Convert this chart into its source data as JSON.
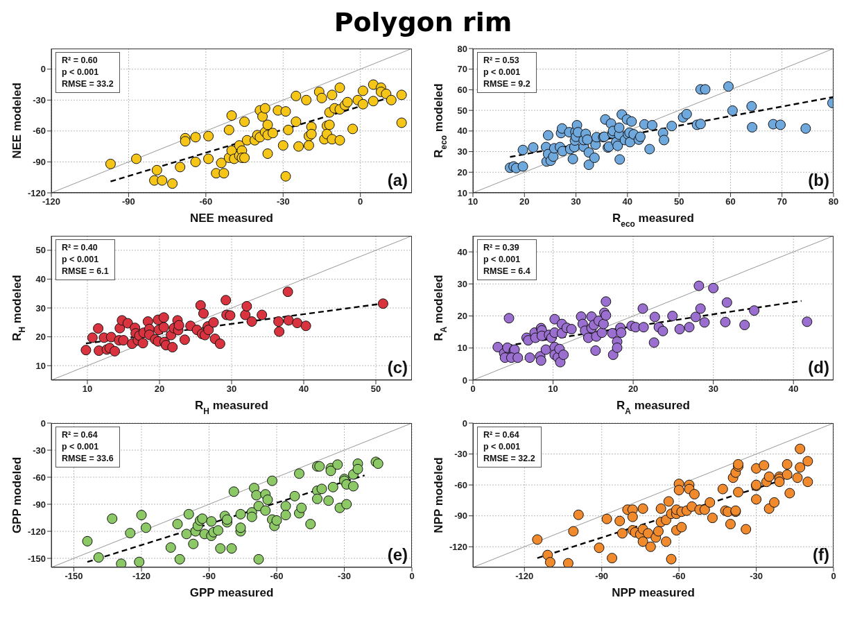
{
  "chart_data": [
    {
      "type": "scatter",
      "title": "Polygon rim",
      "xlabel": "NEE measured",
      "ylabel": "NEE modeled",
      "xlim": [
        -120,
        20
      ],
      "ylim": [
        -120,
        20
      ],
      "xticks": [
        -120,
        -90,
        -60,
        -30,
        0
      ],
      "yticks": [
        -120,
        -90,
        -60,
        -30,
        0
      ],
      "grid": true,
      "annotations": [
        "R² = 0.60",
        "p < 0.001",
        "RMSE = 33.2",
        "(a)"
      ],
      "series": [
        {
          "type": "line",
          "color": "#8c8c8c",
          "line_style": "solid",
          "x": [
            -120,
            20
          ],
          "values": [
            -120,
            20
          ]
        },
        {
          "type": "line",
          "color": "#000000",
          "line_style": "dashed",
          "x": [
            -97,
            12
          ],
          "values": [
            -109,
            -27
          ]
        },
        {
          "marker": "circle",
          "color": "#f5c518",
          "x": [
            -97,
            -87,
            -79,
            -80,
            -77,
            -73,
            -70,
            -68,
            -68,
            -64,
            -64,
            -59,
            -59,
            -56,
            -54,
            -53,
            -51,
            -51,
            -50,
            -50,
            -49,
            -47,
            -47,
            -46,
            -45,
            -46,
            -45,
            -44,
            -41,
            -40,
            -39,
            -39,
            -38,
            -37,
            -37,
            -36,
            -36,
            -36,
            -34,
            -32,
            -30,
            -29,
            -29,
            -28,
            -25,
            -25,
            -24,
            -21,
            -20,
            -20,
            -19,
            -19,
            -16,
            -15,
            -14,
            -13,
            -13,
            -12,
            -12,
            -11,
            -11,
            -10,
            -8,
            -8,
            -8,
            -6,
            -5,
            -3,
            -1,
            1,
            1,
            5,
            5,
            8,
            8,
            10,
            12,
            16,
            16
          ],
          "values": [
            -92,
            -87,
            -98,
            -108,
            -108,
            -111,
            -95,
            -67,
            -70,
            -90,
            -66,
            -65,
            -87,
            -101,
            -91,
            -101,
            -59,
            -86,
            -45,
            -79,
            -87,
            -74,
            -84,
            -79,
            -51,
            -86,
            -86,
            -69,
            -69,
            -64,
            -66,
            -40,
            -46,
            -38,
            -61,
            -64,
            -82,
            -54,
            -62,
            -40,
            -74,
            -41,
            -104,
            -59,
            -26,
            -51,
            -75,
            -30,
            -65,
            -74,
            -56,
            -63,
            -22,
            -28,
            -68,
            -55,
            -63,
            -42,
            -54,
            -68,
            -25,
            -38,
            -39,
            -69,
            -18,
            -35,
            -32,
            -58,
            -30,
            -34,
            -21,
            -15,
            -31,
            -18,
            -22,
            -24,
            -30,
            -25,
            -52
          ]
        }
      ]
    },
    {
      "type": "scatter",
      "xlabel": "R$_{eco}$ measured",
      "ylabel": "R$_{eco}$ modeled",
      "xlim": [
        10,
        80
      ],
      "ylim": [
        10,
        80
      ],
      "xticks": [
        10,
        20,
        30,
        40,
        50,
        60,
        70,
        80
      ],
      "yticks": [
        10,
        20,
        30,
        40,
        50,
        60,
        70,
        80
      ],
      "grid": true,
      "annotations": [
        "R² = 0.53",
        "p < 0.001",
        "RMSE = 9.2",
        "(b)"
      ],
      "series": [
        {
          "type": "line",
          "color": "#8c8c8c",
          "line_style": "solid",
          "x": [
            10,
            80
          ],
          "values": [
            10,
            80
          ]
        },
        {
          "type": "line",
          "color": "#000000",
          "line_style": "dashed",
          "x": [
            17.2,
            80
          ],
          "values": [
            27.4,
            56.5
          ]
        },
        {
          "marker": "circle",
          "color": "#6fa8dc",
          "x": [
            17.2,
            17.9,
            18.4,
            19.7,
            19.7,
            21.7,
            24.2,
            24.6,
            24.3,
            24.6,
            25.1,
            25.6,
            25.8,
            26.9,
            27.1,
            27.3,
            27.4,
            28.7,
            28.9,
            29.4,
            29.7,
            29.8,
            29.9,
            30,
            30.2,
            30.4,
            31.5,
            31.5,
            31.9,
            32.2,
            32.5,
            32.5,
            33.6,
            33.8,
            34,
            35.3,
            35.5,
            35.7,
            36.2,
            36.4,
            36.8,
            37.1,
            37.2,
            37.8,
            38.1,
            38.4,
            38.4,
            38.5,
            38.9,
            39.5,
            39.9,
            40.1,
            40.4,
            40.5,
            40.8,
            41.2,
            42.2,
            42.5,
            43.3,
            44.3,
            44.8,
            46.9,
            47.1,
            48.6,
            50.8,
            51.5,
            53.5,
            54.2,
            54.2,
            55.1,
            59.6,
            60.4,
            64.1,
            64.2,
            68.3,
            69.7,
            74.6,
            79.8
          ],
          "values": [
            22.2,
            22.8,
            22,
            22.8,
            30.8,
            32,
            32.2,
            37.9,
            25.2,
            28.8,
            25.6,
            27.6,
            31.6,
            32.2,
            39,
            41.2,
            30.2,
            39.4,
            31.2,
            26.4,
            32.2,
            35.4,
            39.6,
            37.2,
            42.8,
            39.4,
            32.4,
            35.6,
            38.6,
            35.8,
            29.6,
            23.6,
            27,
            33.4,
            37,
            37,
            37.2,
            45.6,
            32,
            32.4,
            43.6,
            38.8,
            40,
            34.6,
            32.8,
            38.2,
            41.6,
            26.2,
            48,
            35.6,
            45.6,
            38.4,
            39.2,
            34.6,
            44.6,
            38.4,
            35.8,
            37.2,
            43.2,
            31.2,
            42.8,
            39,
            35.6,
            42.4,
            46.6,
            48.2,
            43,
            43.4,
            60.2,
            60.2,
            61.6,
            49.9,
            52,
            41.8,
            43.3,
            43,
            41.2,
            53.6
          ]
        }
      ]
    },
    {
      "type": "scatter",
      "xlabel": "R$_{H}$ measured",
      "ylabel": "R$_{H}$ modeled",
      "xlim": [
        5,
        55
      ],
      "ylim": [
        5,
        55
      ],
      "xticks": [
        10,
        20,
        30,
        40,
        50
      ],
      "yticks": [
        10,
        20,
        30,
        40,
        50
      ],
      "grid": true,
      "annotations": [
        "R² = 0.40",
        "p < 0.001",
        "RMSE = 6.1",
        "(c)"
      ],
      "series": [
        {
          "type": "line",
          "color": "#8c8c8c",
          "line_style": "solid",
          "x": [
            5,
            55
          ],
          "values": [
            5,
            55
          ]
        },
        {
          "type": "line",
          "color": "#000000",
          "line_style": "dashed",
          "x": [
            9.8,
            50.3
          ],
          "values": [
            17.7,
            31.3
          ]
        },
        {
          "marker": "circle",
          "color": "#d9333f",
          "x": [
            9.8,
            10.7,
            11.5,
            11.6,
            12.3,
            12.7,
            13.1,
            13.3,
            13.8,
            14.4,
            14.5,
            14.8,
            15,
            15.6,
            16.2,
            16.6,
            16.7,
            17,
            17.2,
            17.7,
            17.8,
            18.4,
            18.6,
            18.6,
            19.4,
            19.8,
            19.9,
            19.8,
            20.6,
            20.6,
            20.7,
            20.9,
            21.6,
            21.8,
            22,
            22.5,
            22.6,
            22.7,
            23.5,
            24.3,
            25.2,
            25.7,
            25.9,
            26.1,
            26.3,
            26.7,
            26.8,
            27.5,
            27.7,
            28.4,
            29.2,
            29.3,
            29.8,
            31.9,
            32.1,
            32.8,
            34.2,
            36.5,
            36.6,
            37.8,
            37.9,
            39.1,
            40.3,
            51
          ],
          "values": [
            15.4,
            19.7,
            22.9,
            15.2,
            19.7,
            15.6,
            16.1,
            19.9,
            15,
            18.8,
            23,
            25.7,
            18.8,
            24.7,
            17.6,
            23.1,
            21.2,
            18.8,
            20.4,
            17.8,
            21.4,
            25.3,
            22.7,
            20.7,
            19.1,
            25.9,
            22.4,
            18.4,
            23.3,
            26.7,
            18.2,
            17.1,
            20.6,
            16.4,
            23,
            25.7,
            22.3,
            24,
            19,
            23.8,
            22.4,
            30.9,
            21,
            28.1,
            20.6,
            23.6,
            22.4,
            25,
            19.3,
            17.6,
            32.7,
            27.6,
            27.4,
            27.6,
            30.6,
            25.3,
            27.6,
            25.3,
            21.8,
            35.6,
            25.7,
            24.8,
            23.8,
            31.5
          ]
        }
      ]
    },
    {
      "type": "scatter",
      "xlabel": "R$_{A}$ measured",
      "ylabel": "R$_{A}$ modeled",
      "xlim": [
        0,
        45
      ],
      "ylim": [
        0,
        45
      ],
      "xticks": [
        0,
        10,
        20,
        30,
        40
      ],
      "yticks": [
        0,
        10,
        20,
        30,
        40
      ],
      "grid": true,
      "annotations": [
        "R² = 0.39",
        "p < 0.001",
        "RMSE = 6.4",
        "(d)"
      ],
      "series": [
        {
          "type": "line",
          "color": "#8c8c8c",
          "line_style": "solid",
          "x": [
            0,
            45
          ],
          "values": [
            0,
            45
          ]
        },
        {
          "type": "line",
          "color": "#000000",
          "line_style": "dashed",
          "x": [
            3.1,
            41
          ],
          "values": [
            10.3,
            24.7
          ]
        },
        {
          "marker": "circle",
          "color": "#9b6fd0",
          "x": [
            3.1,
            3.9,
            4,
            4.3,
            4.5,
            5.1,
            5.2,
            4.8,
            5.6,
            6.7,
            6.9,
            7.1,
            7.7,
            7.8,
            8.4,
            8.5,
            8.5,
            8.6,
            8.6,
            9.1,
            9.5,
            9.8,
            10.2,
            10.2,
            10.2,
            10.2,
            10.6,
            10.8,
            10.9,
            11.1,
            11.1,
            11.3,
            11.7,
            12.3,
            13.5,
            13.7,
            14,
            14.4,
            14.8,
            14.8,
            15.1,
            15.3,
            15.4,
            15.7,
            16.1,
            16.3,
            16.4,
            16.6,
            16.6,
            17.4,
            17.5,
            18,
            18,
            18.4,
            18.5,
            19.8,
            20.3,
            21.2,
            21.3,
            22.6,
            22.7,
            23.2,
            23.7,
            24.9,
            25.8,
            27,
            27.8,
            28.2,
            28.4,
            28.9,
            30,
            31.5,
            31.7,
            33.9,
            35.1,
            41.7
          ],
          "values": [
            10.3,
            8.4,
            7,
            10.1,
            19.3,
            9.2,
            9.5,
            7,
            7,
            13.2,
            12.4,
            7,
            14.8,
            13.2,
            7.4,
            6.1,
            16.2,
            15.5,
            13.8,
            9.5,
            14.1,
            13.2,
            19,
            14.8,
            10.3,
            7.9,
            7.1,
            9.7,
            5.6,
            17.5,
            14.6,
            7.9,
            16.3,
            15.9,
            19.8,
            17.5,
            15.4,
            13.2,
            19.8,
            16.2,
            17.2,
            9.2,
            13.6,
            18.5,
            14.8,
            17.5,
            21,
            20.2,
            24.5,
            14.6,
            7.9,
            12,
            10.1,
            16.3,
            14.8,
            16.9,
            16.5,
            22.3,
            16.5,
            11.7,
            19.7,
            16.5,
            15.3,
            20,
            15.9,
            16.5,
            19.7,
            29.4,
            22.3,
            18,
            28.7,
            18.1,
            24.2,
            17.2,
            21.7,
            18.2
          ]
        }
      ]
    },
    {
      "type": "scatter",
      "xlabel": "GPP measured",
      "ylabel": "GPP modeled",
      "xlim": [
        -160,
        0
      ],
      "ylim": [
        -160,
        0
      ],
      "xticks": [
        -150,
        -120,
        -90,
        -60,
        -30,
        0
      ],
      "yticks": [
        -150,
        -120,
        -90,
        -60,
        -30,
        0
      ],
      "grid": true,
      "annotations": [
        "R² = 0.64",
        "p < 0.001",
        "RMSE = 33.6",
        "(e)"
      ],
      "series": [
        {
          "type": "line",
          "color": "#8c8c8c",
          "line_style": "solid",
          "x": [
            -160,
            0
          ],
          "values": [
            -160,
            0
          ]
        },
        {
          "type": "line",
          "color": "#000000",
          "line_style": "dashed",
          "x": [
            -144,
            -21
          ],
          "values": [
            -154,
            -58
          ]
        },
        {
          "marker": "circle",
          "color": "#8cc866",
          "x": [
            -144,
            -139,
            -133,
            -129,
            -125,
            -121,
            -120,
            -118,
            -107,
            -104,
            -103,
            -100,
            -99,
            -97,
            -96,
            -95,
            -94,
            -93,
            -92,
            -89,
            -89,
            -88,
            -86,
            -85,
            -83,
            -82,
            -82,
            -80,
            -79,
            -76,
            -76,
            -76,
            -71,
            -71,
            -70,
            -69,
            -68,
            -68,
            -65,
            -65,
            -64,
            -62,
            -62,
            -61,
            -60,
            -56,
            -56,
            -52,
            -50,
            -50,
            -49,
            -45,
            -42,
            -41,
            -42,
            -42,
            -40,
            -37,
            -36,
            -36,
            -35,
            -33,
            -32,
            -30,
            -30,
            -29,
            -29,
            -26,
            -26,
            -24,
            -24,
            -16,
            -15
          ],
          "values": [
            -131,
            -149,
            -106,
            -156,
            -122,
            -154,
            -102,
            -116,
            -138,
            -112,
            -151,
            -123,
            -101,
            -134,
            -120,
            -114,
            -108,
            -106,
            -123,
            -109,
            -125,
            -121,
            -119,
            -139,
            -103,
            -110,
            -107,
            -139,
            -76,
            -120,
            -116,
            -101,
            -99,
            -104,
            -72,
            -80,
            -92,
            -151,
            -97,
            -79,
            -85,
            -64,
            -107,
            -114,
            -108,
            -92,
            -102,
            -81,
            -100,
            -56,
            -94,
            -112,
            -48,
            -48,
            -75,
            -84,
            -73,
            -86,
            -50,
            -53,
            -71,
            -46,
            -94,
            -62,
            -64,
            -90,
            -68,
            -57,
            -70,
            -45,
            -51,
            -43,
            -45
          ]
        }
      ]
    },
    {
      "type": "scatter",
      "xlabel": "NPP measured",
      "ylabel": "NPP modeled",
      "xlim": [
        -140,
        0
      ],
      "ylim": [
        -140,
        0
      ],
      "xticks": [
        -120,
        -90,
        -60,
        -30,
        0
      ],
      "yticks": [
        -120,
        -90,
        -60,
        -30,
        0
      ],
      "grid": true,
      "annotations": [
        "R² = 0.64",
        "p < 0.001",
        "RMSE = 32.2",
        "(f)"
      ],
      "series": [
        {
          "type": "line",
          "color": "#8c8c8c",
          "line_style": "solid",
          "x": [
            -140,
            0
          ],
          "values": [
            -140,
            0
          ]
        },
        {
          "type": "line",
          "color": "#000000",
          "line_style": "dashed",
          "x": [
            -115,
            -12
          ],
          "values": [
            -131,
            -49
          ]
        },
        {
          "marker": "circle",
          "color": "#f08a2c",
          "x": [
            -115,
            -111,
            -110,
            -103,
            -101,
            -99,
            -91,
            -88,
            -86,
            -83,
            -82,
            -80,
            -78,
            -78,
            -78,
            -77,
            -75,
            -74,
            -74,
            -74,
            -72,
            -71,
            -69,
            -68,
            -67,
            -67,
            -65,
            -65,
            -64,
            -63,
            -63,
            -61,
            -61,
            -61,
            -60,
            -60,
            -59,
            -59,
            -57,
            -56,
            -56,
            -55,
            -54,
            -52,
            -50,
            -48,
            -47,
            -43,
            -42,
            -41,
            -40,
            -39,
            -38,
            -38,
            -38,
            -37,
            -37,
            -37,
            -34,
            -30,
            -30,
            -30,
            -30,
            -27,
            -26,
            -25,
            -25,
            -23,
            -21,
            -21,
            -21,
            -18,
            -18,
            -17,
            -14,
            -13,
            -13,
            -10,
            -10
          ],
          "values": [
            -113,
            -128,
            -135,
            -136,
            -105,
            -89,
            -121,
            -93,
            -131,
            -95,
            -107,
            -84,
            -84,
            -91,
            -104,
            -106,
            -108,
            -103,
            -115,
            -83,
            -107,
            -120,
            -111,
            -105,
            -96,
            -83,
            -115,
            -94,
            -76,
            -88,
            -132,
            -88,
            -104,
            -84,
            -59,
            -65,
            -86,
            -101,
            -85,
            -60,
            -64,
            -81,
            -69,
            -84,
            -84,
            -77,
            -92,
            -64,
            -85,
            -86,
            -98,
            -53,
            -86,
            -85,
            -48,
            -67,
            -42,
            -40,
            -103,
            -44,
            -61,
            -74,
            -60,
            -41,
            -57,
            -52,
            -83,
            -77,
            -52,
            -54,
            -57,
            -50,
            -40,
            -68,
            -53,
            -25,
            -43,
            -37,
            -57
          ]
        }
      ]
    }
  ]
}
